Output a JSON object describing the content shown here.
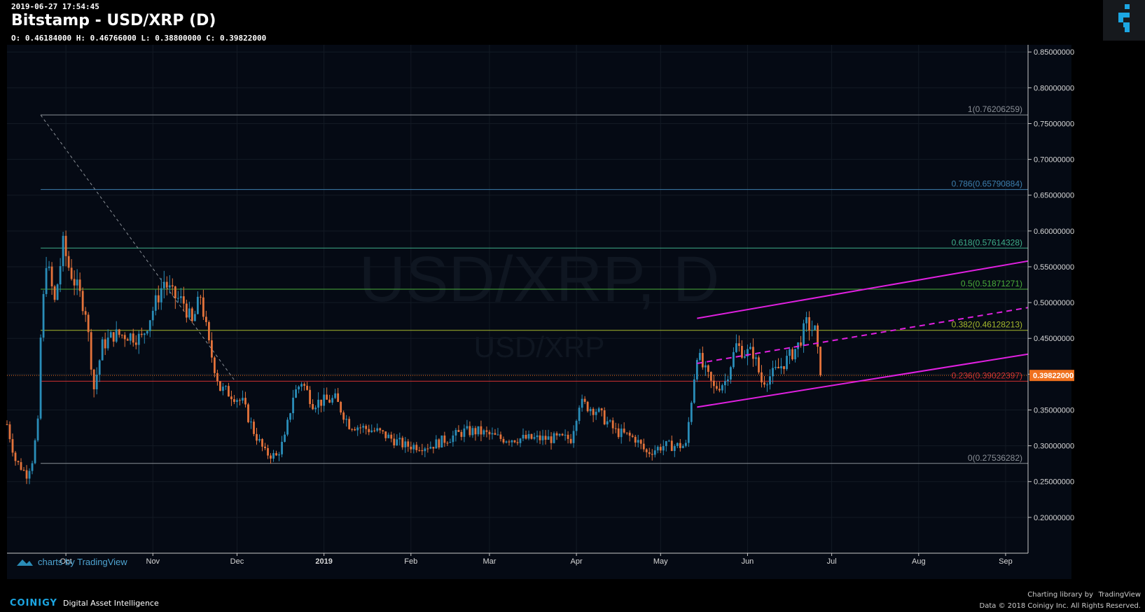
{
  "header": {
    "timestamp": "2019-06-27 17:54:45",
    "title": "Bitstamp - USD/XRP (D)",
    "ohlc": "O: 0.46184000 H: 0.46766000 L: 0.38800000 C: 0.39822000"
  },
  "watermark": {
    "big": "USD/XRP, D",
    "small": "USD/XRP"
  },
  "tradingview_badge": "charts by TradingView",
  "footer": {
    "brand": "COINIGY",
    "tagline": "Digital Asset Intelligence",
    "charting_credit": "Charting library by",
    "tradingview": "TradingView",
    "copyright": "Data © 2018  Coinigy Inc. All Rights Reserved."
  },
  "colors": {
    "background": "#050a14",
    "up_candle": "#2a8db8",
    "down_candle": "#e4733b",
    "channel": "#e020e0",
    "fib_1": "#8a8f96",
    "fib_786": "#3d7fae",
    "fib_618": "#3fae8a",
    "fib_5": "#4aae3a",
    "fib_382": "#a5b82c",
    "fib_236": "#d03030",
    "fib_0": "#8a8f96",
    "price_label": "#f0711e"
  },
  "chart_data": {
    "type": "candlestick",
    "series_name": "USD/XRP",
    "y_axis": {
      "range": [
        0.15,
        0.86
      ],
      "ticks": [
        "0.85000000",
        "0.80000000",
        "0.75000000",
        "0.70000000",
        "0.65000000",
        "0.60000000",
        "0.55000000",
        "0.50000000",
        "0.45000000",
        "0.40000000",
        "0.35000000",
        "0.30000000",
        "0.25000000",
        "0.20000000"
      ],
      "tick_values": [
        0.85,
        0.8,
        0.75,
        0.7,
        0.65,
        0.6,
        0.55,
        0.5,
        0.45,
        0.4,
        0.35,
        0.3,
        0.25,
        0.2
      ]
    },
    "x_axis": {
      "ticks": [
        "Oct",
        "Nov",
        "Dec",
        "2019",
        "Feb",
        "Mar",
        "Apr",
        "May",
        "Jun",
        "Jul",
        "Aug",
        "Sep"
      ],
      "tick_dates": [
        "2018-10-01",
        "2018-11-01",
        "2018-12-01",
        "2019-01-01",
        "2019-02-01",
        "2019-03-01",
        "2019-04-01",
        "2019-05-01",
        "2019-06-01",
        "2019-07-01",
        "2019-08-01",
        "2019-09-01"
      ],
      "range": [
        "2018-09-10",
        "2019-09-09"
      ]
    },
    "last_price": "0.39822000",
    "last_value": 0.39822,
    "fib_levels": [
      {
        "label": "1(0.76206259)",
        "value": 0.76206259,
        "color_key": "fib_1"
      },
      {
        "label": "0.786(0.65790884)",
        "value": 0.65790884,
        "color_key": "fib_786"
      },
      {
        "label": "0.618(0.57614328)",
        "value": 0.57614328,
        "color_key": "fib_618"
      },
      {
        "label": "0.5(0.51871271)",
        "value": 0.51871271,
        "color_key": "fib_5"
      },
      {
        "label": "0.382(0.46128213)",
        "value": 0.46128213,
        "color_key": "fib_382"
      },
      {
        "label": "0.236(0.39022397)",
        "value": 0.39022397,
        "color_key": "fib_236"
      },
      {
        "label": "0(0.27536282)",
        "value": 0.27536282,
        "color_key": "fib_0"
      }
    ],
    "fib_start_date": "2018-09-22",
    "fib_trend_line": {
      "from": [
        "2018-09-22",
        0.762
      ],
      "to": [
        "2018-11-30",
        0.392
      ]
    },
    "channel": {
      "upper": {
        "from": [
          "2019-05-14",
          0.478
        ],
        "to": [
          "2019-09-09",
          0.558
        ]
      },
      "middle": {
        "from": [
          "2019-05-14",
          0.415
        ],
        "to": [
          "2019-09-09",
          0.493
        ]
      },
      "lower": {
        "from": [
          "2019-05-14",
          0.354
        ],
        "to": [
          "2019-09-09",
          0.428
        ]
      }
    },
    "anchors": [
      [
        "2018-09-10",
        0.33
      ],
      [
        "2018-09-13",
        0.28
      ],
      [
        "2018-09-17",
        0.26
      ],
      [
        "2018-09-19",
        0.28
      ],
      [
        "2018-09-21",
        0.33
      ],
      [
        "2018-09-22",
        0.45
      ],
      [
        "2018-09-24",
        0.56
      ],
      [
        "2018-09-27",
        0.5
      ],
      [
        "2018-09-30",
        0.58
      ],
      [
        "2018-10-02",
        0.55
      ],
      [
        "2018-10-05",
        0.52
      ],
      [
        "2018-10-08",
        0.49
      ],
      [
        "2018-10-11",
        0.38
      ],
      [
        "2018-10-14",
        0.44
      ],
      [
        "2018-10-18",
        0.455
      ],
      [
        "2018-10-23",
        0.455
      ],
      [
        "2018-10-28",
        0.45
      ],
      [
        "2018-11-05",
        0.53
      ],
      [
        "2018-11-08",
        0.51
      ],
      [
        "2018-11-12",
        0.5
      ],
      [
        "2018-11-15",
        0.47
      ],
      [
        "2018-11-18",
        0.51
      ],
      [
        "2018-11-21",
        0.44
      ],
      [
        "2018-11-25",
        0.38
      ],
      [
        "2018-11-30",
        0.37
      ],
      [
        "2018-12-03",
        0.36
      ],
      [
        "2018-12-07",
        0.32
      ],
      [
        "2018-12-11",
        0.29
      ],
      [
        "2018-12-15",
        0.285
      ],
      [
        "2018-12-18",
        0.31
      ],
      [
        "2018-12-21",
        0.37
      ],
      [
        "2018-12-24",
        0.39
      ],
      [
        "2018-12-28",
        0.36
      ],
      [
        "2019-01-05",
        0.365
      ],
      [
        "2019-01-10",
        0.33
      ],
      [
        "2019-01-20",
        0.32
      ],
      [
        "2019-01-30",
        0.3
      ],
      [
        "2019-02-08",
        0.3
      ],
      [
        "2019-02-20",
        0.32
      ],
      [
        "2019-02-25",
        0.32
      ],
      [
        "2019-03-05",
        0.31
      ],
      [
        "2019-03-20",
        0.31
      ],
      [
        "2019-03-30",
        0.31
      ],
      [
        "2019-04-02",
        0.36
      ],
      [
        "2019-04-08",
        0.35
      ],
      [
        "2019-04-15",
        0.32
      ],
      [
        "2019-04-22",
        0.31
      ],
      [
        "2019-04-26",
        0.29
      ],
      [
        "2019-05-02",
        0.3
      ],
      [
        "2019-05-10",
        0.3
      ],
      [
        "2019-05-14",
        0.43
      ],
      [
        "2019-05-16",
        0.41
      ],
      [
        "2019-05-20",
        0.38
      ],
      [
        "2019-05-24",
        0.39
      ],
      [
        "2019-05-28",
        0.44
      ],
      [
        "2019-05-31",
        0.43
      ],
      [
        "2019-06-03",
        0.43
      ],
      [
        "2019-06-06",
        0.39
      ],
      [
        "2019-06-10",
        0.4
      ],
      [
        "2019-06-15",
        0.42
      ],
      [
        "2019-06-19",
        0.44
      ],
      [
        "2019-06-22",
        0.47
      ],
      [
        "2019-06-25",
        0.46
      ],
      [
        "2019-06-27",
        0.398
      ]
    ]
  }
}
